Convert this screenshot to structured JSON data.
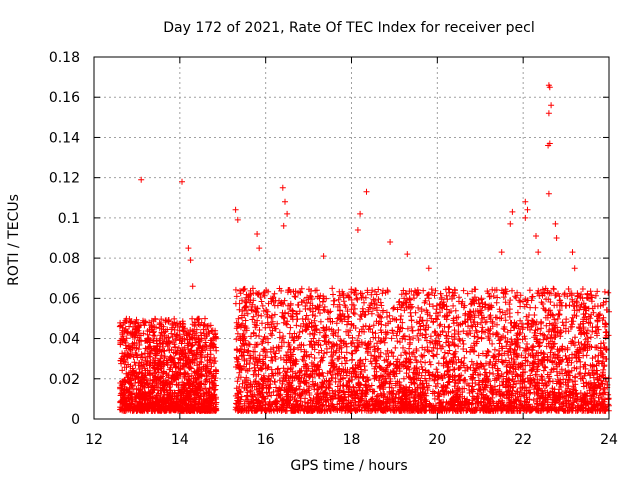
{
  "chart_data": {
    "type": "scatter",
    "title": "Day 172 of 2021, Rate Of TEC Index for receiver pecl",
    "xlabel": "GPS time / hours",
    "ylabel": "ROTI / TECUs",
    "xlim": [
      12,
      24
    ],
    "ylim": [
      0,
      0.18
    ],
    "xticks": [
      12,
      14,
      16,
      18,
      20,
      22,
      24
    ],
    "xtick_labels": [
      "12",
      "14",
      "16",
      "18",
      "20",
      "22",
      "24"
    ],
    "yticks": [
      0,
      0.02,
      0.04,
      0.06,
      0.08,
      0.1,
      0.12,
      0.14,
      0.16,
      0.18
    ],
    "ytick_labels": [
      "0",
      "0.02",
      "0.04",
      "0.06",
      "0.08",
      "0.1",
      "0.12",
      "0.14",
      "0.16",
      "0.18"
    ],
    "grid": true,
    "marker": "+",
    "color": "#ff0000",
    "outlier_points": [
      {
        "x": 13.1,
        "y": 0.119
      },
      {
        "x": 14.05,
        "y": 0.118
      },
      {
        "x": 14.2,
        "y": 0.085
      },
      {
        "x": 14.25,
        "y": 0.079
      },
      {
        "x": 14.3,
        "y": 0.066
      },
      {
        "x": 15.3,
        "y": 0.104
      },
      {
        "x": 15.35,
        "y": 0.099
      },
      {
        "x": 15.8,
        "y": 0.092
      },
      {
        "x": 15.85,
        "y": 0.085
      },
      {
        "x": 16.4,
        "y": 0.115
      },
      {
        "x": 16.45,
        "y": 0.108
      },
      {
        "x": 16.5,
        "y": 0.102
      },
      {
        "x": 16.42,
        "y": 0.096
      },
      {
        "x": 17.35,
        "y": 0.081
      },
      {
        "x": 18.2,
        "y": 0.102
      },
      {
        "x": 18.15,
        "y": 0.094
      },
      {
        "x": 18.35,
        "y": 0.113
      },
      {
        "x": 18.9,
        "y": 0.088
      },
      {
        "x": 19.3,
        "y": 0.082
      },
      {
        "x": 19.8,
        "y": 0.075
      },
      {
        "x": 21.5,
        "y": 0.083
      },
      {
        "x": 21.75,
        "y": 0.103
      },
      {
        "x": 21.7,
        "y": 0.097
      },
      {
        "x": 22.05,
        "y": 0.108
      },
      {
        "x": 22.1,
        "y": 0.104
      },
      {
        "x": 22.05,
        "y": 0.1
      },
      {
        "x": 22.3,
        "y": 0.091
      },
      {
        "x": 22.35,
        "y": 0.083
      },
      {
        "x": 22.6,
        "y": 0.166
      },
      {
        "x": 22.62,
        "y": 0.165
      },
      {
        "x": 22.65,
        "y": 0.156
      },
      {
        "x": 22.6,
        "y": 0.152
      },
      {
        "x": 22.62,
        "y": 0.137
      },
      {
        "x": 22.58,
        "y": 0.136
      },
      {
        "x": 22.6,
        "y": 0.112
      },
      {
        "x": 22.75,
        "y": 0.097
      },
      {
        "x": 22.78,
        "y": 0.09
      },
      {
        "x": 23.15,
        "y": 0.083
      },
      {
        "x": 23.2,
        "y": 0.075
      },
      {
        "x": 23.35,
        "y": 0.062
      }
    ],
    "density_segments": [
      {
        "x_start": 12.6,
        "x_end": 14.85,
        "y_min": 0.004,
        "y_max": 0.05,
        "count": 1600
      },
      {
        "x_start": 15.3,
        "x_end": 24.0,
        "y_min": 0.004,
        "y_max": 0.065,
        "count": 4200
      }
    ]
  }
}
